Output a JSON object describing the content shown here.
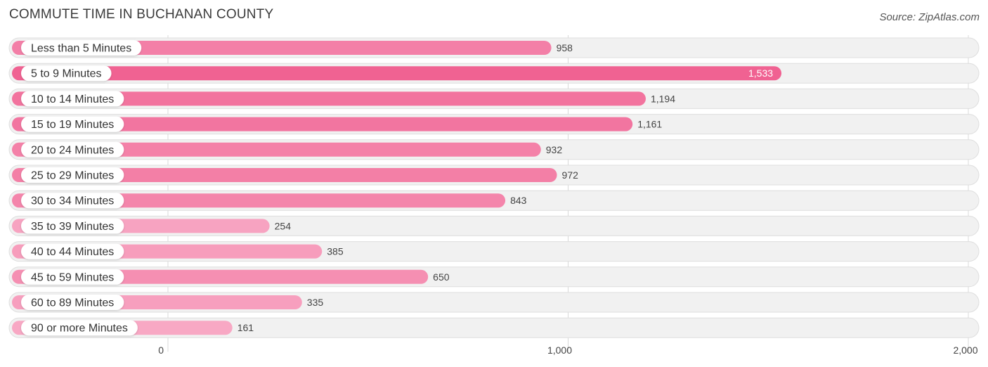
{
  "chart_data": {
    "type": "bar",
    "orientation": "horizontal",
    "title": "COMMUTE TIME IN BUCHANAN COUNTY",
    "source": "Source: ZipAtlas.com",
    "categories": [
      "Less than 5 Minutes",
      "5 to 9 Minutes",
      "10 to 14 Minutes",
      "15 to 19 Minutes",
      "20 to 24 Minutes",
      "25 to 29 Minutes",
      "30 to 34 Minutes",
      "35 to 39 Minutes",
      "40 to 44 Minutes",
      "45 to 59 Minutes",
      "60 to 89 Minutes",
      "90 or more Minutes"
    ],
    "values": [
      958,
      1533,
      1194,
      1161,
      932,
      972,
      843,
      254,
      385,
      650,
      335,
      161
    ],
    "value_labels": [
      "958",
      "1,533",
      "1,194",
      "1,161",
      "932",
      "972",
      "843",
      "254",
      "385",
      "650",
      "335",
      "161"
    ],
    "xlim": [
      0,
      2000
    ],
    "xticks": [
      0,
      1000,
      2000
    ],
    "xtick_labels": [
      "0",
      "1,000",
      "2,000"
    ],
    "grid": true,
    "legend": "none",
    "bar_color_max": "#f06292",
    "bar_color_min": "#f8a8c4"
  }
}
